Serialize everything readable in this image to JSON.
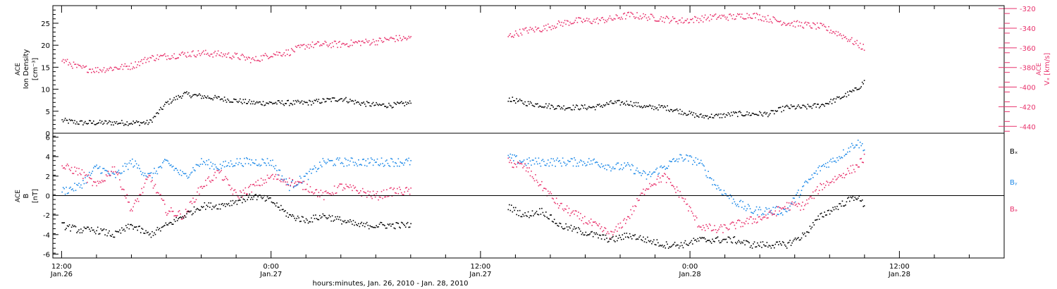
{
  "colors": {
    "black": "#000000",
    "blue": "#1f8ae8",
    "red": "#e8336d"
  },
  "xaxis": {
    "title": "hours:minutes, Jan. 26, 2010 - Jan. 28, 2010",
    "ticks": [
      {
        "t": 0,
        "top": "12:00",
        "bottom": "Jan.26"
      },
      {
        "t": 12,
        "top": "0:00",
        "bottom": "Jan.27"
      },
      {
        "t": 24,
        "top": "12:00",
        "bottom": "Jan.27"
      },
      {
        "t": 36,
        "top": "0:00",
        "bottom": "Jan.28"
      },
      {
        "t": 48,
        "top": "12:00",
        "bottom": "Jan.28"
      }
    ],
    "range": [
      -0.5,
      54
    ]
  },
  "chart_data": [
    {
      "type": "scatter",
      "panel": "top",
      "ylabel_left": [
        "ACE",
        "Ion Density",
        "[cm⁻³]"
      ],
      "ylabel_right": [
        "ACE",
        "Vₓ [km/s]"
      ],
      "ylim_left": [
        0,
        29
      ],
      "yticks_left": [
        0,
        5,
        10,
        15,
        20,
        25
      ],
      "ylim_right": [
        -447,
        -317
      ],
      "yticks_right": [
        -440,
        -420,
        -400,
        -380,
        -360,
        -340,
        -320
      ],
      "data_gap_hours": [
        20.2,
        25.3
      ],
      "series": [
        {
          "color": "black",
          "axis": "left",
          "x": [
            0,
            1,
            2,
            3,
            4,
            5,
            6,
            7,
            8,
            9,
            10,
            11,
            12,
            13,
            14,
            15,
            16,
            17,
            18,
            19,
            20,
            25.5,
            26.5,
            27.5,
            28.5,
            29.5,
            30.5,
            31.5,
            32.5,
            33.5,
            34.5,
            35.5,
            36.5,
            37.5,
            38.5,
            39.5,
            40.5,
            41.5,
            42.5,
            43.5,
            44.5,
            45.5,
            46
          ],
          "y": [
            3,
            2.5,
            2.5,
            2.5,
            2.5,
            2.5,
            7,
            9,
            8.5,
            8,
            7.5,
            7,
            7,
            7,
            7,
            7.5,
            8,
            7,
            6.5,
            6.5,
            7,
            8,
            7,
            6.5,
            6,
            6,
            6,
            7,
            7,
            6,
            6,
            5,
            4,
            4,
            4.5,
            4.5,
            4.5,
            6,
            6,
            6.5,
            8,
            10,
            12
          ]
        },
        {
          "color": "red",
          "axis": "right",
          "x": [
            0,
            1,
            2,
            3,
            4,
            5,
            6,
            7,
            8,
            9,
            10,
            11,
            12,
            13,
            14,
            15,
            16,
            17,
            18,
            19,
            20,
            25.5,
            26.5,
            27.5,
            28.5,
            29.5,
            30.5,
            31.5,
            32.5,
            33.5,
            34.5,
            35.5,
            36.5,
            37.5,
            38.5,
            39.5,
            40.5,
            41.5,
            42.5,
            43.5,
            44.5,
            45.5,
            46
          ],
          "y": [
            -372,
            -380,
            -382,
            -380,
            -378,
            -370,
            -368,
            -366,
            -365,
            -366,
            -368,
            -372,
            -366,
            -364,
            -357,
            -356,
            -356,
            -354,
            -353,
            -350,
            -350,
            -348,
            -342,
            -340,
            -335,
            -332,
            -332,
            -330,
            -326,
            -328,
            -330,
            -332,
            -330,
            -328,
            -328,
            -326,
            -330,
            -334,
            -336,
            -338,
            -345,
            -355,
            -360
          ]
        }
      ]
    },
    {
      "type": "scatter",
      "panel": "bottom",
      "ylabel_left": [
        "ACE",
        "B",
        "[nT]"
      ],
      "ylim": [
        -6.4,
        6.4
      ],
      "yticks": [
        -6,
        -4,
        -2,
        0,
        2,
        4,
        6
      ],
      "zero_line": true,
      "legend_position": "right",
      "data_gap_hours": [
        20.2,
        25.3
      ],
      "series": [
        {
          "name": "Bₓ",
          "color": "black",
          "x": [
            0,
            1,
            2,
            3,
            4,
            5,
            6,
            7,
            8,
            9,
            10,
            11,
            12,
            13,
            14,
            15,
            16,
            17,
            18,
            19,
            20,
            25.5,
            26.5,
            27.5,
            28.5,
            29.5,
            30.5,
            31.5,
            32.5,
            33.5,
            34.5,
            35.5,
            36.5,
            37.5,
            38.5,
            39.5,
            40.5,
            41.5,
            42.5,
            43.5,
            44.5,
            45.5,
            46
          ],
          "y": [
            -3,
            -3.5,
            -3.5,
            -4,
            -3,
            -4,
            -3,
            -2,
            -1,
            -1,
            -0.5,
            0,
            -0.5,
            -2,
            -2.5,
            -2,
            -2.5,
            -3,
            -3,
            -3,
            -3,
            -1,
            -2,
            -1.5,
            -3,
            -3.5,
            -4,
            -4.5,
            -4,
            -4.5,
            -5,
            -5,
            -4.5,
            -4.5,
            -4.5,
            -5,
            -5,
            -5,
            -4,
            -2,
            -1,
            0,
            -1
          ]
        },
        {
          "name": "Bᵧ",
          "color": "blue",
          "x": [
            0,
            1,
            2,
            3,
            4,
            5,
            6,
            7,
            8,
            9,
            10,
            11,
            12,
            13,
            14,
            15,
            16,
            17,
            18,
            19,
            20,
            25.5,
            26.5,
            27.5,
            28.5,
            29.5,
            30.5,
            31.5,
            32.5,
            33.5,
            34.5,
            35.5,
            36.5,
            37.5,
            38.5,
            39.5,
            40.5,
            41.5,
            42.5,
            43.5,
            44.5,
            45.5,
            46
          ],
          "y": [
            0.5,
            1,
            3,
            2,
            3.5,
            2,
            3.5,
            2,
            3.5,
            3,
            3.5,
            3.5,
            3.5,
            1,
            2,
            3.5,
            3.5,
            3.5,
            3.5,
            3.5,
            3.5,
            4,
            3.5,
            3.5,
            3.5,
            3.5,
            3.5,
            3,
            3,
            2,
            3,
            4,
            3.5,
            1,
            -0.5,
            -1.5,
            -1.5,
            -1.5,
            1,
            3,
            4,
            5.5,
            5
          ]
        },
        {
          "name": "Bₔ",
          "color": "red",
          "x": [
            0,
            1,
            2,
            3,
            4,
            5,
            6,
            7,
            8,
            9,
            10,
            11,
            12,
            13,
            14,
            15,
            16,
            17,
            18,
            19,
            20,
            25.5,
            26.5,
            27.5,
            28.5,
            29.5,
            30.5,
            31.5,
            32.5,
            33.5,
            34.5,
            35.5,
            36.5,
            37.5,
            38.5,
            39.5,
            40.5,
            41.5,
            42.5,
            43.5,
            44.5,
            45.5,
            46
          ],
          "y": [
            3,
            2.5,
            1,
            3,
            -1.5,
            2,
            -1.5,
            -2,
            1,
            2.5,
            0,
            1,
            2,
            1.5,
            1,
            0,
            1,
            0.5,
            0,
            0.5,
            0.5,
            3.5,
            3,
            1,
            -1,
            -2,
            -3,
            -4,
            -2,
            1,
            2,
            0,
            -3,
            -3.5,
            -3,
            -2.5,
            -2,
            -1,
            -1,
            1,
            2,
            3,
            4
          ]
        }
      ]
    }
  ]
}
